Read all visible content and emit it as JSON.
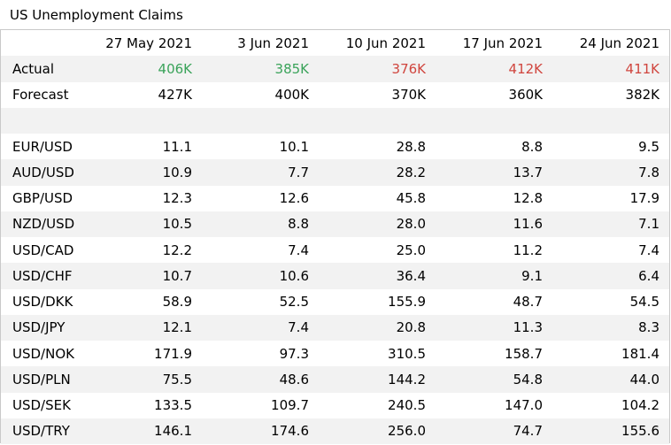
{
  "title": "US Unemployment Claims",
  "headers": [
    "",
    "27 May 2021",
    "3 Jun 2021",
    "10 Jun 2021",
    "17 Jun 2021",
    "24 Jun 2021"
  ],
  "actual": {
    "label": "Actual",
    "values": [
      "406K",
      "385K",
      "376K",
      "412K",
      "411K"
    ],
    "colors": [
      "#3aa35a",
      "#3aa35a",
      "#d0453e",
      "#d0453e",
      "#d0453e"
    ]
  },
  "forecast": {
    "label": "Forecast",
    "values": [
      "427K",
      "400K",
      "370K",
      "360K",
      "382K"
    ]
  },
  "pairs": [
    {
      "label": "EUR/USD",
      "values": [
        "11.1",
        "10.1",
        "28.8",
        "8.8",
        "9.5"
      ]
    },
    {
      "label": "AUD/USD",
      "values": [
        "10.9",
        "7.7",
        "28.2",
        "13.7",
        "7.8"
      ]
    },
    {
      "label": "GBP/USD",
      "values": [
        "12.3",
        "12.6",
        "45.8",
        "12.8",
        "17.9"
      ]
    },
    {
      "label": "NZD/USD",
      "values": [
        "10.5",
        "8.8",
        "28.0",
        "11.6",
        "7.1"
      ]
    },
    {
      "label": "USD/CAD",
      "values": [
        "12.2",
        "7.4",
        "25.0",
        "11.2",
        "7.4"
      ]
    },
    {
      "label": "USD/CHF",
      "values": [
        "10.7",
        "10.6",
        "36.4",
        "9.1",
        "6.4"
      ]
    },
    {
      "label": "USD/DKK",
      "values": [
        "58.9",
        "52.5",
        "155.9",
        "48.7",
        "54.5"
      ]
    },
    {
      "label": "USD/JPY",
      "values": [
        "12.1",
        "7.4",
        "20.8",
        "11.3",
        "8.3"
      ]
    },
    {
      "label": "USD/NOK",
      "values": [
        "171.9",
        "97.3",
        "310.5",
        "158.7",
        "181.4"
      ]
    },
    {
      "label": "USD/PLN",
      "values": [
        "75.5",
        "48.6",
        "144.2",
        "54.8",
        "44.0"
      ]
    },
    {
      "label": "USD/SEK",
      "values": [
        "133.5",
        "109.7",
        "240.5",
        "147.0",
        "104.2"
      ]
    },
    {
      "label": "USD/TRY",
      "values": [
        "146.1",
        "174.6",
        "256.0",
        "74.7",
        "155.6"
      ]
    }
  ]
}
